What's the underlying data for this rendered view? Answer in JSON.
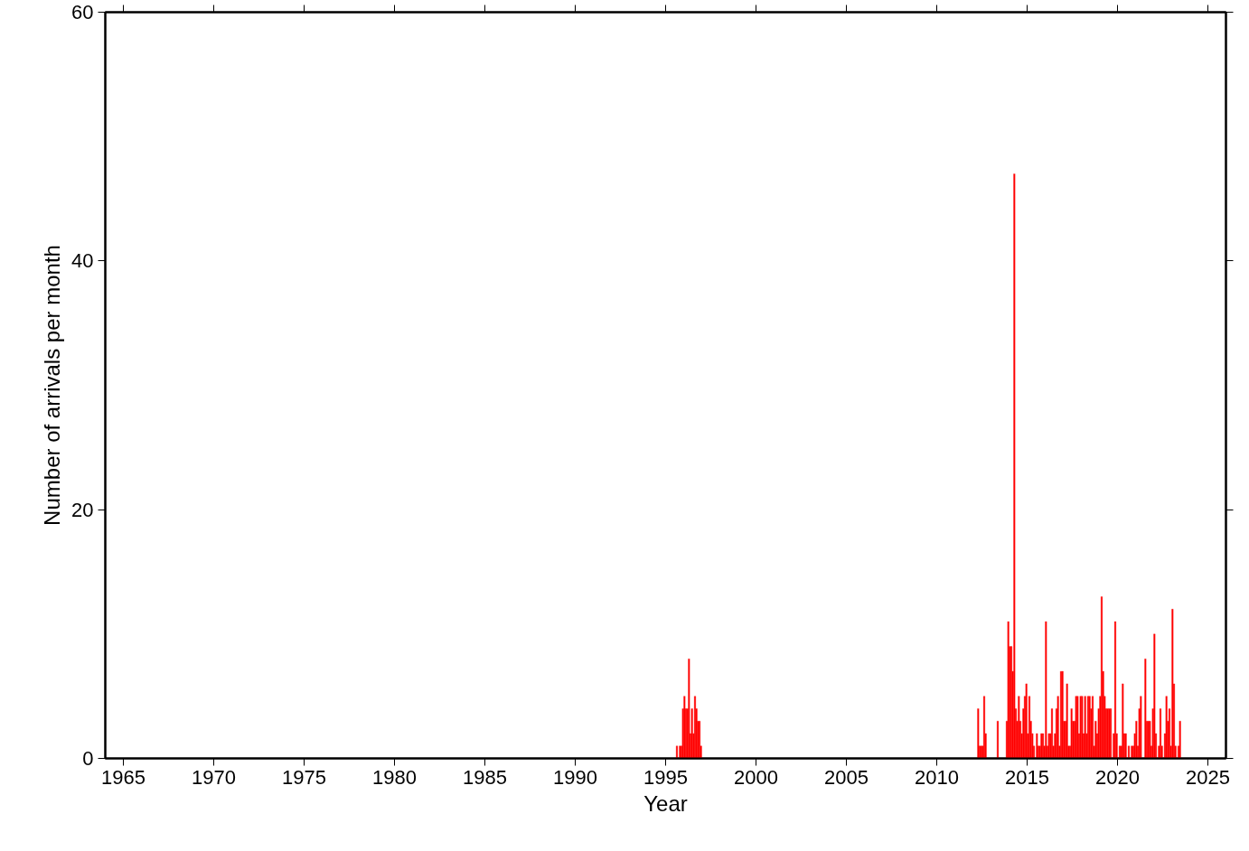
{
  "chart_data": {
    "type": "bar",
    "xlabel": "Year",
    "ylabel": "Number of arrivals per month",
    "color": "#ff0000",
    "x": [
      "1995-08",
      "1995-10",
      "1995-11",
      "1995-12",
      "1996-01",
      "1996-02",
      "1996-03",
      "1996-04",
      "1996-05",
      "1996-06",
      "1996-07",
      "1996-08",
      "1996-09",
      "1996-10",
      "1996-11",
      "1996-12",
      "2012-04",
      "2012-05",
      "2012-06",
      "2012-07",
      "2012-08",
      "2012-09",
      "2013-05",
      "2013-11",
      "2013-12",
      "2014-01",
      "2014-02",
      "2014-03",
      "2014-04",
      "2014-05",
      "2014-06",
      "2014-07",
      "2014-08",
      "2014-09",
      "2014-10",
      "2014-11",
      "2014-12",
      "2015-01",
      "2015-02",
      "2015-03",
      "2015-04",
      "2015-05",
      "2015-07",
      "2015-08",
      "2015-09",
      "2015-10",
      "2015-11",
      "2015-12",
      "2016-01",
      "2016-02",
      "2016-03",
      "2016-04",
      "2016-05",
      "2016-06",
      "2016-07",
      "2016-08",
      "2016-09",
      "2016-10",
      "2016-11",
      "2016-12",
      "2017-01",
      "2017-02",
      "2017-03",
      "2017-04",
      "2017-05",
      "2017-06",
      "2017-07",
      "2017-08",
      "2017-09",
      "2017-10",
      "2017-11",
      "2017-12",
      "2018-01",
      "2018-02",
      "2018-03",
      "2018-04",
      "2018-05",
      "2018-06",
      "2018-07",
      "2018-08",
      "2018-09",
      "2018-10",
      "2018-11",
      "2018-12",
      "2019-01",
      "2019-02",
      "2019-03",
      "2019-04",
      "2019-05",
      "2019-06",
      "2019-07",
      "2019-08",
      "2019-10",
      "2019-11",
      "2019-12",
      "2020-02",
      "2020-03",
      "2020-04",
      "2020-05",
      "2020-06",
      "2020-08",
      "2020-10",
      "2020-11",
      "2020-12",
      "2021-01",
      "2021-02",
      "2021-03",
      "2021-04",
      "2021-07",
      "2021-08",
      "2021-09",
      "2021-10",
      "2021-11",
      "2021-12",
      "2022-01",
      "2022-02",
      "2022-04",
      "2022-05",
      "2022-06",
      "2022-08",
      "2022-09",
      "2022-10",
      "2022-11",
      "2022-12",
      "2023-01",
      "2023-02",
      "2023-03",
      "2023-05",
      "2023-06"
    ],
    "values": [
      1,
      1,
      1,
      4,
      5,
      4,
      4,
      8,
      2,
      4,
      2,
      5,
      4,
      3,
      3,
      1,
      4,
      1,
      1,
      1,
      5,
      2,
      3,
      3,
      11,
      9,
      9,
      7,
      47,
      4,
      3,
      5,
      3,
      2,
      4,
      5,
      6,
      2,
      5,
      3,
      2,
      1,
      2,
      1,
      1,
      2,
      2,
      1,
      11,
      1,
      2,
      2,
      4,
      1,
      2,
      4,
      5,
      1,
      7,
      7,
      3,
      3,
      6,
      1,
      1,
      4,
      3,
      3,
      5,
      5,
      2,
      5,
      5,
      2,
      5,
      2,
      5,
      5,
      4,
      5,
      1,
      3,
      2,
      4,
      5,
      13,
      7,
      5,
      4,
      4,
      4,
      4,
      2,
      11,
      2,
      1,
      1,
      6,
      2,
      2,
      1,
      1,
      1,
      2,
      3,
      1,
      4,
      5,
      8,
      3,
      3,
      3,
      1,
      4,
      10,
      2,
      1,
      4,
      1,
      2,
      5,
      3,
      4,
      1,
      12,
      6,
      1,
      1,
      3
    ],
    "xlim": [
      "1964",
      "2026"
    ],
    "xticks": [
      "1965",
      "1970",
      "1975",
      "1980",
      "1985",
      "1990",
      "1995",
      "2000",
      "2005",
      "2010",
      "2015",
      "2020",
      "2025"
    ],
    "ylim": [
      0,
      60
    ],
    "yticks": [
      0,
      20,
      40,
      60
    ]
  }
}
